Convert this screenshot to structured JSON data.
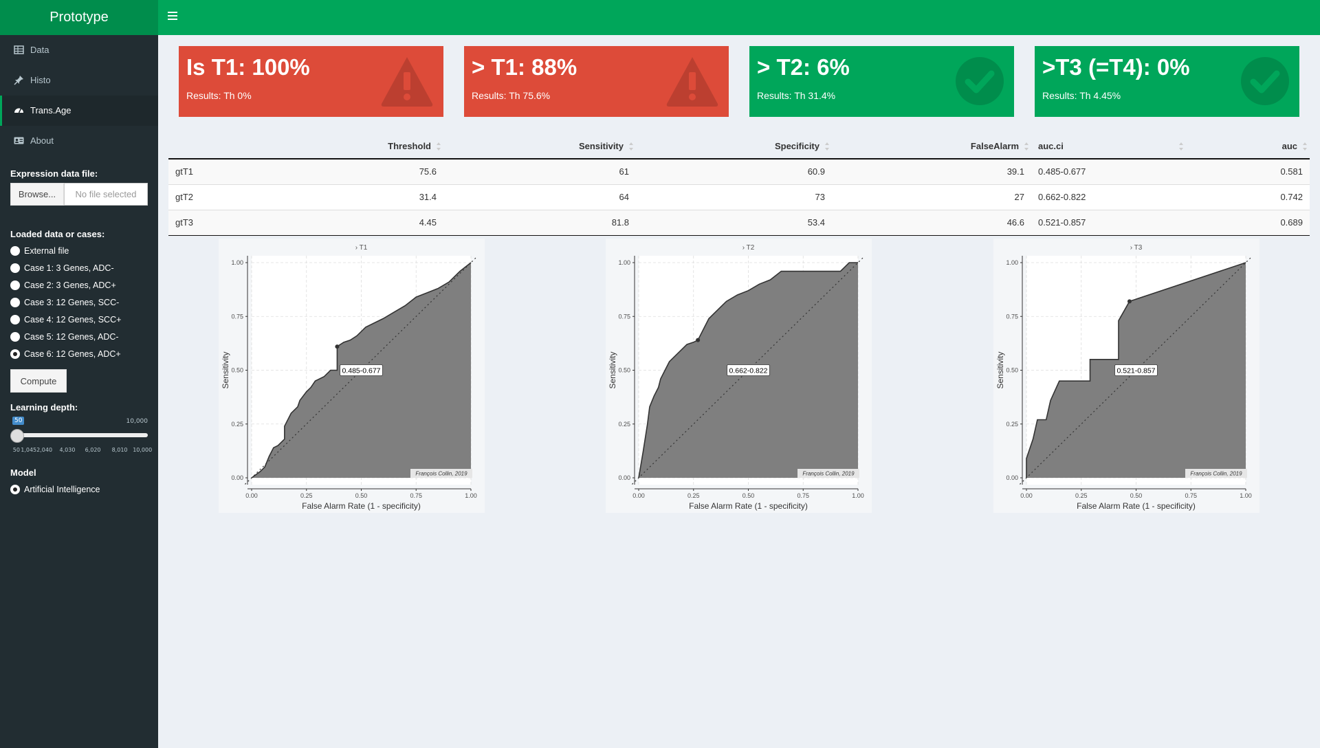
{
  "app": {
    "title": "Prototype"
  },
  "sidebar": {
    "items": [
      {
        "label": "Data",
        "icon": "table-icon",
        "active": false
      },
      {
        "label": "Histo",
        "icon": "pin-icon",
        "active": false
      },
      {
        "label": "Trans.Age",
        "icon": "dashboard-icon",
        "active": true
      },
      {
        "label": "About",
        "icon": "id-card-icon",
        "active": false
      }
    ],
    "file": {
      "label": "Expression data file:",
      "button": "Browse...",
      "placeholder": "No file selected"
    },
    "cases": {
      "label": "Loaded data or cases:",
      "options": [
        "External file",
        "Case 1: 3 Genes, ADC-",
        "Case 2: 3 Genes, ADC+",
        "Case 3: 12 Genes, SCC-",
        "Case 4: 12 Genes, SCC+",
        "Case 5: 12 Genes, ADC-",
        "Case 6: 12 Genes, ADC+"
      ],
      "selected": "Case 6: 12 Genes, ADC+"
    },
    "compute_label": "Compute",
    "depth": {
      "label": "Learning depth:",
      "value": "50",
      "max_label": "10,000",
      "ticks": [
        "50",
        "1,0452,040",
        "4,030",
        "6,020",
        "8,010",
        "10,000"
      ]
    },
    "model": {
      "label": "Model",
      "option": "Artificial Intelligence"
    }
  },
  "valueboxes": [
    {
      "value": "Is T1: 100%",
      "subtitle": "Results: Th 0%",
      "color": "#dd4b39",
      "icon": "warning-icon"
    },
    {
      "value": "> T1: 88%",
      "subtitle": "Results: Th 75.6%",
      "color": "#dd4b39",
      "icon": "warning-icon"
    },
    {
      "value": "> T2: 6%",
      "subtitle": "Results: Th 31.4%",
      "color": "#00a65a",
      "icon": "check-circle-icon"
    },
    {
      "value": ">T3 (=T4): 0%",
      "subtitle": "Results: Th 4.45%",
      "color": "#00a65a",
      "icon": "check-circle-icon"
    }
  ],
  "table": {
    "headers": [
      "",
      "Threshold",
      "Sensitivity",
      "Specificity",
      "FalseAlarm",
      "auc.ci",
      "auc"
    ],
    "rows": [
      [
        "gtT1",
        "75.6",
        "61",
        "60.9",
        "39.1",
        "0.485-0.677",
        "0.581"
      ],
      [
        "gtT2",
        "31.4",
        "64",
        "73",
        "27",
        "0.662-0.822",
        "0.742"
      ],
      [
        "gtT3",
        "4.45",
        "81.8",
        "53.4",
        "46.6",
        "0.521-0.857",
        "0.689"
      ]
    ]
  },
  "chart_data": [
    {
      "type": "area",
      "title": "› T1",
      "xlabel": "False Alarm Rate (1 - specificity)",
      "ylabel": "Sensitivity",
      "xlim": [
        0,
        1
      ],
      "ylim": [
        0,
        1
      ],
      "xticks": [
        "0.00",
        "0.25",
        "0.50",
        "0.75",
        "1.00"
      ],
      "yticks": [
        "0.00",
        "0.25",
        "0.50",
        "0.75",
        "1.00"
      ],
      "annotation": "0.485-0.677",
      "credit": "François Collin, 2019",
      "highlight_point": [
        0.39,
        0.61
      ],
      "x": [
        0,
        0.04,
        0.06,
        0.08,
        0.09,
        0.1,
        0.12,
        0.13,
        0.15,
        0.15,
        0.18,
        0.21,
        0.22,
        0.25,
        0.27,
        0.29,
        0.33,
        0.36,
        0.39,
        0.39,
        0.42,
        0.45,
        0.48,
        0.52,
        0.56,
        0.6,
        0.65,
        0.7,
        0.75,
        0.8,
        0.85,
        0.9,
        0.95,
        1.0
      ],
      "y": [
        0,
        0.03,
        0.05,
        0.1,
        0.12,
        0.14,
        0.15,
        0.16,
        0.18,
        0.24,
        0.3,
        0.33,
        0.36,
        0.4,
        0.42,
        0.45,
        0.47,
        0.5,
        0.5,
        0.61,
        0.63,
        0.64,
        0.66,
        0.7,
        0.72,
        0.74,
        0.77,
        0.8,
        0.84,
        0.86,
        0.88,
        0.91,
        0.96,
        1.0
      ]
    },
    {
      "type": "area",
      "title": "› T2",
      "xlabel": "False Alarm Rate (1 - specificity)",
      "ylabel": "Sensitivity",
      "xlim": [
        0,
        1
      ],
      "ylim": [
        0,
        1
      ],
      "xticks": [
        "0.00",
        "0.25",
        "0.50",
        "0.75",
        "1.00"
      ],
      "yticks": [
        "0.00",
        "0.25",
        "0.50",
        "0.75",
        "1.00"
      ],
      "annotation": "0.662-0.822",
      "credit": "François Collin, 2019",
      "highlight_point": [
        0.27,
        0.64
      ],
      "x": [
        0,
        0.01,
        0.02,
        0.04,
        0.05,
        0.07,
        0.09,
        0.1,
        0.12,
        0.14,
        0.16,
        0.18,
        0.2,
        0.22,
        0.25,
        0.27,
        0.3,
        0.32,
        0.35,
        0.38,
        0.4,
        0.45,
        0.5,
        0.55,
        0.6,
        0.65,
        0.75,
        0.8,
        0.85,
        0.92,
        0.96,
        1.0
      ],
      "y": [
        0,
        0.06,
        0.12,
        0.25,
        0.33,
        0.38,
        0.42,
        0.46,
        0.5,
        0.54,
        0.56,
        0.58,
        0.6,
        0.62,
        0.63,
        0.64,
        0.7,
        0.74,
        0.77,
        0.8,
        0.82,
        0.85,
        0.87,
        0.9,
        0.92,
        0.96,
        0.96,
        0.96,
        0.96,
        0.96,
        1.0,
        1.0
      ]
    },
    {
      "type": "area",
      "title": "› T3",
      "xlabel": "False Alarm Rate (1 - specificity)",
      "ylabel": "Sensitivity",
      "xlim": [
        0,
        1
      ],
      "ylim": [
        0,
        1
      ],
      "xticks": [
        "0.00",
        "0.25",
        "0.50",
        "0.75",
        "1.00"
      ],
      "yticks": [
        "0.00",
        "0.25",
        "0.50",
        "0.75",
        "1.00"
      ],
      "annotation": "0.521-0.857",
      "credit": "François Collin, 2019",
      "highlight_point": [
        0.47,
        0.82
      ],
      "x": [
        0,
        0,
        0.03,
        0.05,
        0.09,
        0.11,
        0.15,
        0.29,
        0.29,
        0.34,
        0.42,
        0.42,
        0.47,
        1.0
      ],
      "y": [
        0,
        0.09,
        0.18,
        0.27,
        0.27,
        0.36,
        0.45,
        0.45,
        0.55,
        0.55,
        0.55,
        0.73,
        0.82,
        1.0
      ]
    }
  ]
}
